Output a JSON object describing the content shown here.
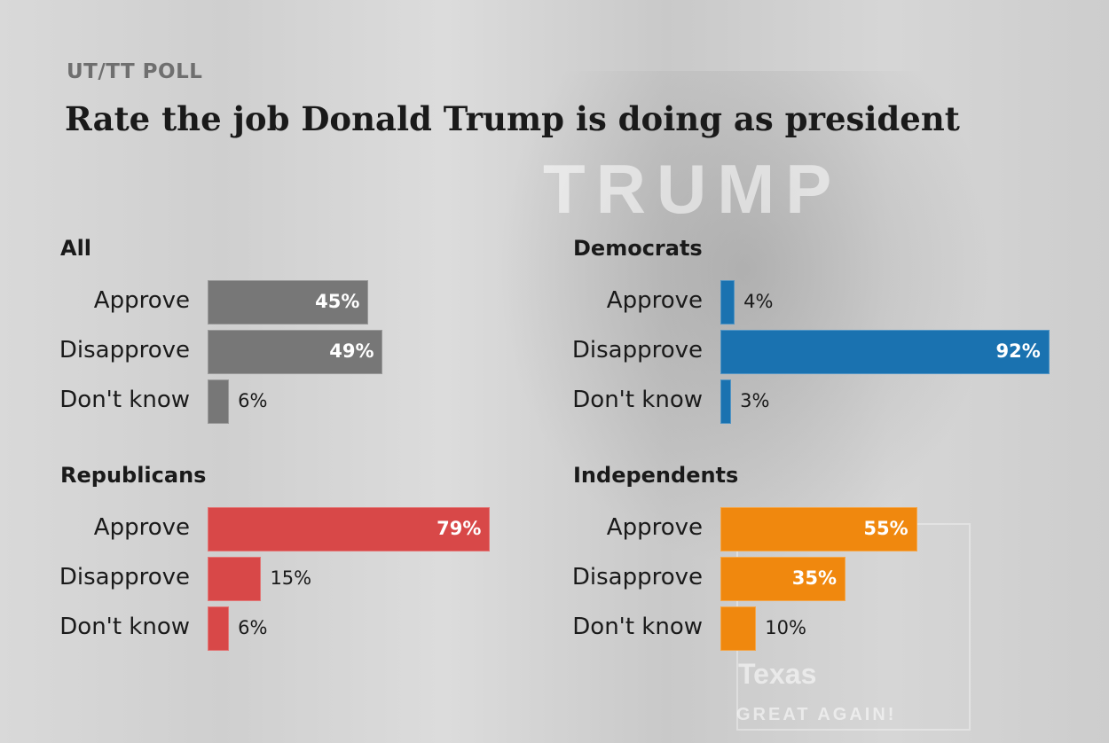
{
  "kicker": "UT/TT POLL",
  "title": "Rate the job Donald Trump is doing as president",
  "background_text": [
    "TRUMP",
    "Texas",
    "GREAT AGAIN!"
  ],
  "chart_data": {
    "type": "bar",
    "orientation": "horizontal",
    "categories": [
      "Approve",
      "Disapprove",
      "Don't know"
    ],
    "unit": "%",
    "xlim": [
      0,
      100
    ],
    "grid": false,
    "panels": [
      {
        "name": "All",
        "color": "#777777",
        "values": [
          45,
          49,
          6
        ]
      },
      {
        "name": "Democrats",
        "color": "#1a72b0",
        "values": [
          4,
          92,
          3
        ]
      },
      {
        "name": "Republicans",
        "color": "#d84848",
        "values": [
          79,
          15,
          6
        ]
      },
      {
        "name": "Independents",
        "color": "#f0880e",
        "values": [
          55,
          35,
          10
        ]
      }
    ]
  }
}
